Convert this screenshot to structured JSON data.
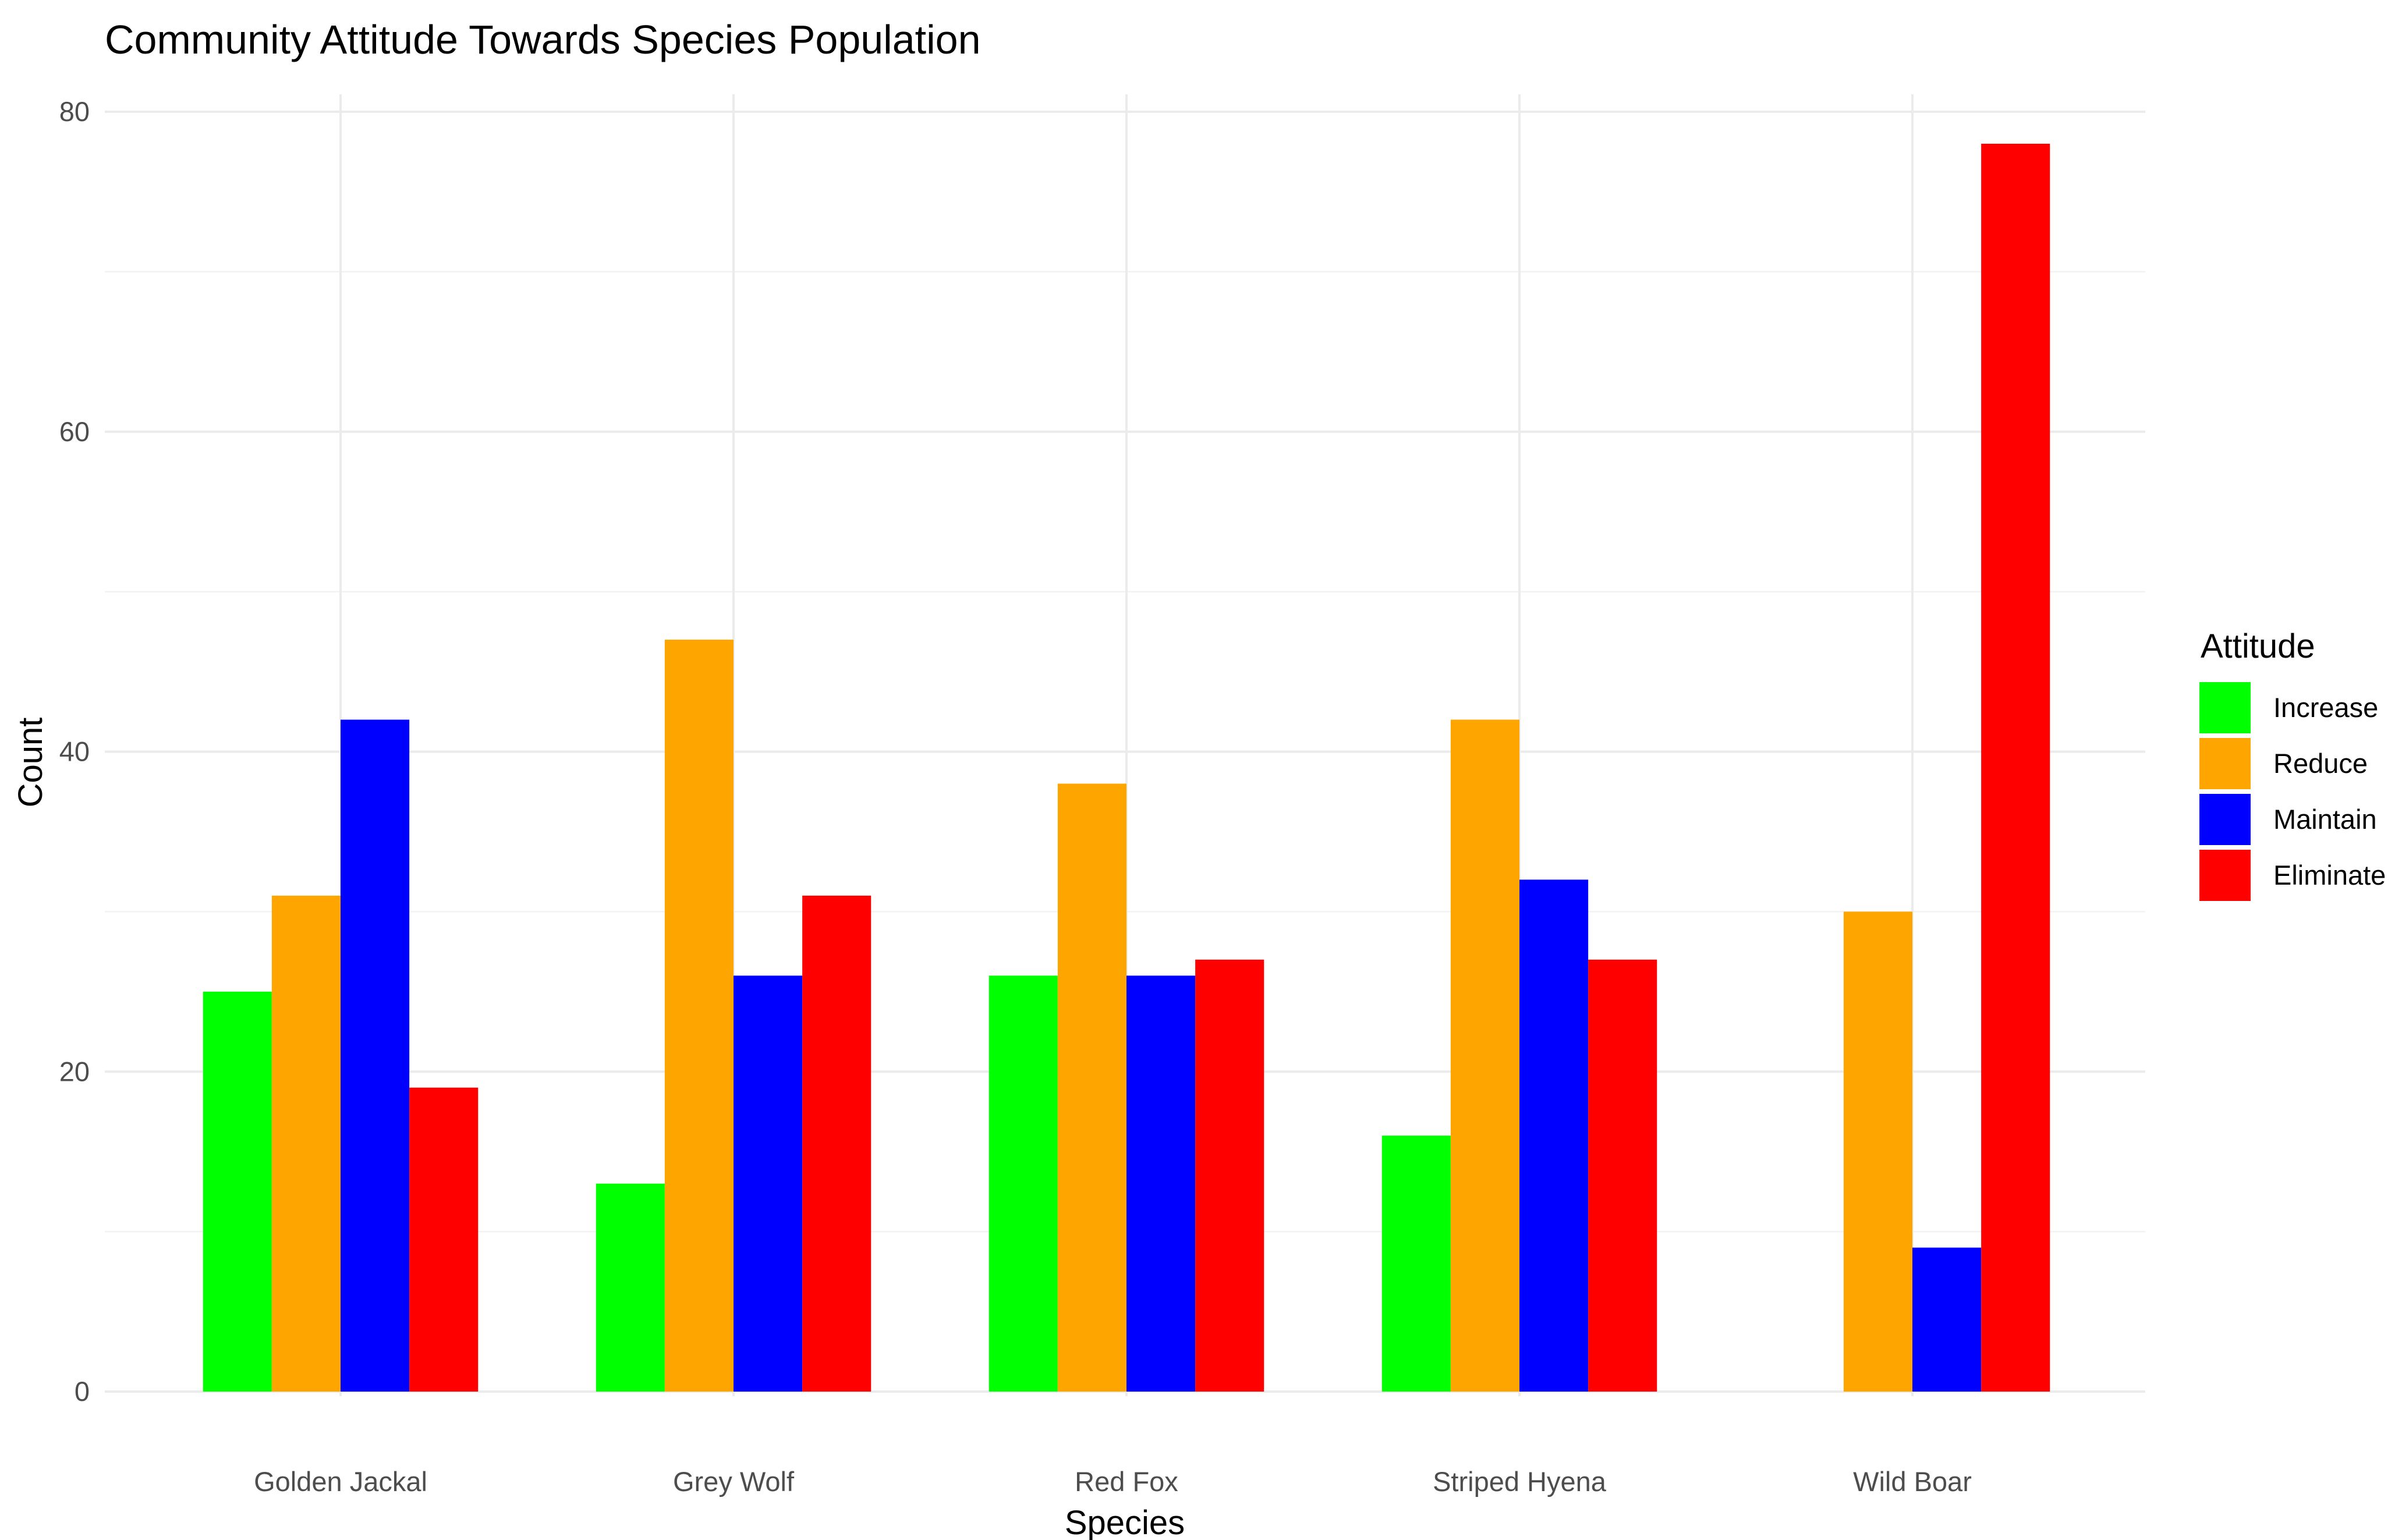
{
  "chart_data": {
    "type": "bar",
    "title": "Community Attitude Towards Species Population",
    "xlabel": "Species",
    "ylabel": "Count",
    "ylim": [
      0,
      80
    ],
    "yticks": [
      0,
      20,
      40,
      60,
      80
    ],
    "categories": [
      "Golden Jackal",
      "Grey Wolf",
      "Red Fox",
      "Striped Hyena",
      "Wild Boar"
    ],
    "legend": {
      "title": "Attitude",
      "position": "right"
    },
    "series": [
      {
        "name": "Increase",
        "color": "#00ff00",
        "values": [
          25,
          13,
          26,
          16,
          0
        ]
      },
      {
        "name": "Reduce",
        "color": "#ffa500",
        "values": [
          31,
          47,
          38,
          42,
          30
        ]
      },
      {
        "name": "Maintain",
        "color": "#0000ff",
        "values": [
          42,
          26,
          26,
          32,
          9
        ]
      },
      {
        "name": "Eliminate",
        "color": "#ff0000",
        "values": [
          19,
          31,
          27,
          27,
          78
        ]
      }
    ]
  }
}
